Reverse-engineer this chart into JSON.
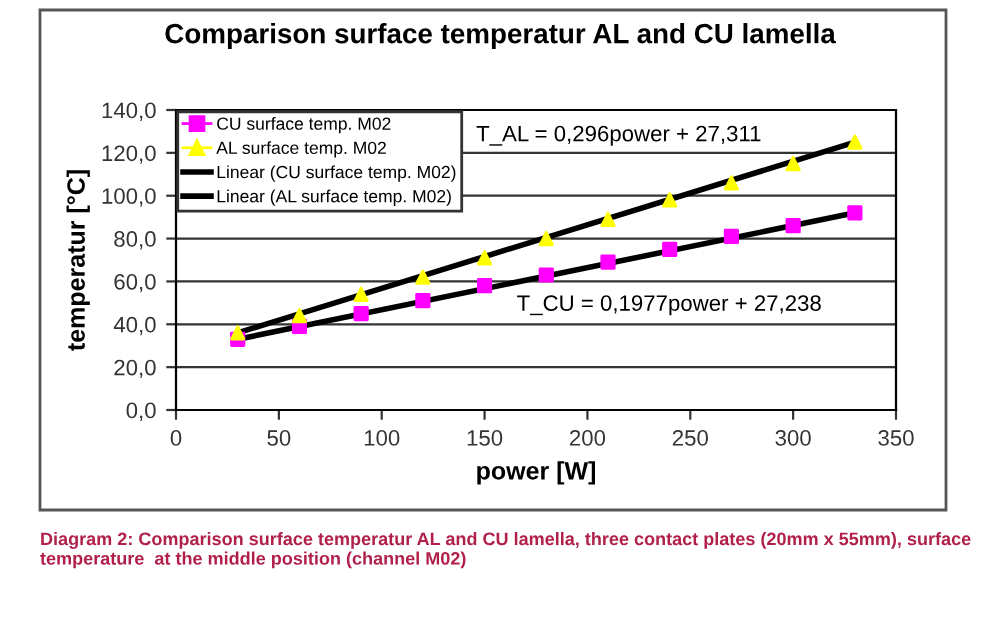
{
  "chart_data": {
    "type": "scatter",
    "title": "Comparison surface temperatur AL and CU lamella",
    "xlabel": "power [W]",
    "ylabel": "temperatur [°C]",
    "xlim": [
      0,
      350
    ],
    "xticks": [
      0,
      50,
      100,
      150,
      200,
      250,
      300,
      350
    ],
    "ylim": [
      0,
      140
    ],
    "yticks": [
      {
        "value": 0,
        "label": "0,0"
      },
      {
        "value": 20,
        "label": "20,0"
      },
      {
        "value": 40,
        "label": "40,0"
      },
      {
        "value": 60,
        "label": "60,0"
      },
      {
        "value": 80,
        "label": "80,0"
      },
      {
        "value": 100,
        "label": "100,0"
      },
      {
        "value": 120,
        "label": "120,0"
      },
      {
        "value": 140,
        "label": "140,0"
      }
    ],
    "grid": "y",
    "legend": "top left",
    "series": [
      {
        "name": "CU surface temp. M02",
        "marker": "square",
        "color": "#ff00ff",
        "x": [
          30,
          60,
          90,
          120,
          150,
          180,
          210,
          240,
          270,
          300,
          330
        ],
        "values": [
          33,
          39,
          45,
          51,
          58,
          63,
          69,
          75,
          81,
          86,
          92
        ]
      },
      {
        "name": "AL surface temp. M02",
        "marker": "triangle",
        "color": "#ffff00",
        "x": [
          30,
          60,
          90,
          120,
          150,
          180,
          210,
          240,
          270,
          300,
          330
        ],
        "values": [
          36,
          44,
          54,
          62,
          71,
          80,
          89,
          98,
          106,
          115,
          125
        ]
      },
      {
        "name": "Linear (CU surface temp. M02)",
        "type": "line",
        "color": "#000000",
        "x": [
          30,
          330
        ],
        "values": [
          33,
          92
        ]
      },
      {
        "name": "Linear (AL surface temp. M02)",
        "type": "line",
        "color": "#000000",
        "x": [
          30,
          330
        ],
        "values": [
          36,
          125
        ]
      }
    ],
    "annotations": [
      "T_AL = 0,296power + 27,311",
      "T_CU = 0,1977power + 27,238",
      "Diagram 2: Comparison surface temperatur AL and CU lamella, three contact plates (20mm x 55mm), surface temperature  at the middle position (channel M02)"
    ]
  }
}
